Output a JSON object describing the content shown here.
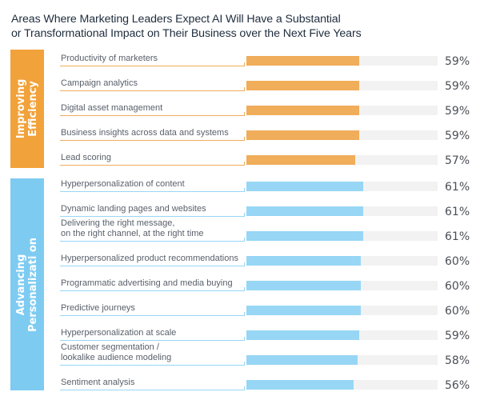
{
  "chart_data": {
    "type": "bar",
    "orientation": "horizontal",
    "title": "Areas Where Marketing Leaders Expect AI Will Have a Substantial or Transformational Impact on Their Business over the Next Five Years",
    "title_lines": [
      "Areas Where Marketing Leaders Expect AI Will Have a Substantial",
      "or Transformational Impact on Their Business over the Next Five Years"
    ],
    "xlabel": "",
    "ylabel": "",
    "xlim": [
      0,
      100
    ],
    "unit": "%",
    "grid": false,
    "legend": "none",
    "groups": [
      {
        "name": "Improving Efficiency",
        "label_lines": [
          "Improving",
          "Efficiency"
        ],
        "color": "#f0ad5a",
        "box_color": "#f2a23a",
        "items": [
          {
            "label_lines": [
              "Productivity of marketers"
            ],
            "value": 59,
            "display": "59%"
          },
          {
            "label_lines": [
              "Campaign analytics"
            ],
            "value": 59,
            "display": "59%"
          },
          {
            "label_lines": [
              "Digital asset management"
            ],
            "value": 59,
            "display": "59%"
          },
          {
            "label_lines": [
              "Business insights across data and systems"
            ],
            "value": 59,
            "display": "59%"
          },
          {
            "label_lines": [
              "Lead scoring"
            ],
            "value": 57,
            "display": "57%"
          }
        ]
      },
      {
        "name": "Advancing Personalization",
        "label_lines": [
          "Advancing",
          "Personalizati on"
        ],
        "color": "#97d6f5",
        "box_color": "#7ecbf2",
        "items": [
          {
            "label_lines": [
              "Hyperpersonalization of content"
            ],
            "value": 61,
            "display": "61%"
          },
          {
            "label_lines": [
              "Dynamic landing pages and websites"
            ],
            "value": 61,
            "display": "61%"
          },
          {
            "label_lines": [
              "Delivering the right message,",
              "on the right channel, at the right time"
            ],
            "value": 61,
            "display": "61%"
          },
          {
            "label_lines": [
              "Hyperpersonalized product recommendations"
            ],
            "value": 60,
            "display": "60%"
          },
          {
            "label_lines": [
              "Programmatic advertising and media buying"
            ],
            "value": 60,
            "display": "60%"
          },
          {
            "label_lines": [
              "Predictive journeys"
            ],
            "value": 60,
            "display": "60%"
          },
          {
            "label_lines": [
              "Hyperpersonalization at scale"
            ],
            "value": 59,
            "display": "59%"
          },
          {
            "label_lines": [
              "Customer segmentation /",
              "lookalike audience modeling"
            ],
            "value": 58,
            "display": "58%"
          },
          {
            "label_lines": [
              "Sentiment analysis"
            ],
            "value": 56,
            "display": "56%"
          }
        ]
      }
    ],
    "track_color": "#f2f2f2"
  }
}
